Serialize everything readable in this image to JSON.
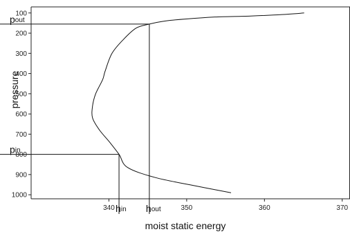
{
  "chart_data": {
    "type": "line",
    "title": "",
    "xlabel": "moist static energy",
    "ylabel": "pressure",
    "xlim": [
      330,
      371
    ],
    "ylim": [
      1020,
      70
    ],
    "y_inverted": true,
    "grid": false,
    "x_ticks": [
      340,
      350,
      360,
      370
    ],
    "x_tick_labels": [
      "340",
      "350",
      "360",
      "370"
    ],
    "y_ticks": [
      100,
      200,
      300,
      400,
      500,
      600,
      700,
      800,
      900,
      1000
    ],
    "y_tick_labels": [
      "100",
      "200",
      "300",
      "400",
      "500",
      "600",
      "700",
      "800",
      "900",
      "1000"
    ],
    "series": [
      {
        "x": [
          355.7,
          351,
          346,
          342.4,
          341.3,
          340.1,
          338.8,
          337.9,
          337.9,
          338.3,
          339.2,
          339.5,
          340.4,
          341.9,
          343.5,
          345.2,
          347.2,
          349.8,
          353.6,
          358.2,
          362.2,
          365.1
        ],
        "y": [
          990,
          955,
          915,
          865,
          800,
          740,
          680,
          620,
          560,
          500,
          430,
          390,
          300,
          230,
          175,
          155,
          140,
          130,
          120,
          115,
          108,
          100
        ]
      }
    ],
    "annotations": [
      {
        "kind": "horizontal_guide",
        "y": 155,
        "x_end": 345.2,
        "label": "p",
        "subscript": "out"
      },
      {
        "kind": "horizontal_guide",
        "y": 800,
        "x_end": 341.3,
        "label": "p",
        "subscript": "in"
      },
      {
        "kind": "vertical_guide",
        "x": 341.3,
        "y_end": 800,
        "label": "h",
        "subscript": "in"
      },
      {
        "kind": "vertical_guide",
        "x": 345.2,
        "y_end": 155,
        "label": "h",
        "subscript": "out"
      }
    ]
  }
}
